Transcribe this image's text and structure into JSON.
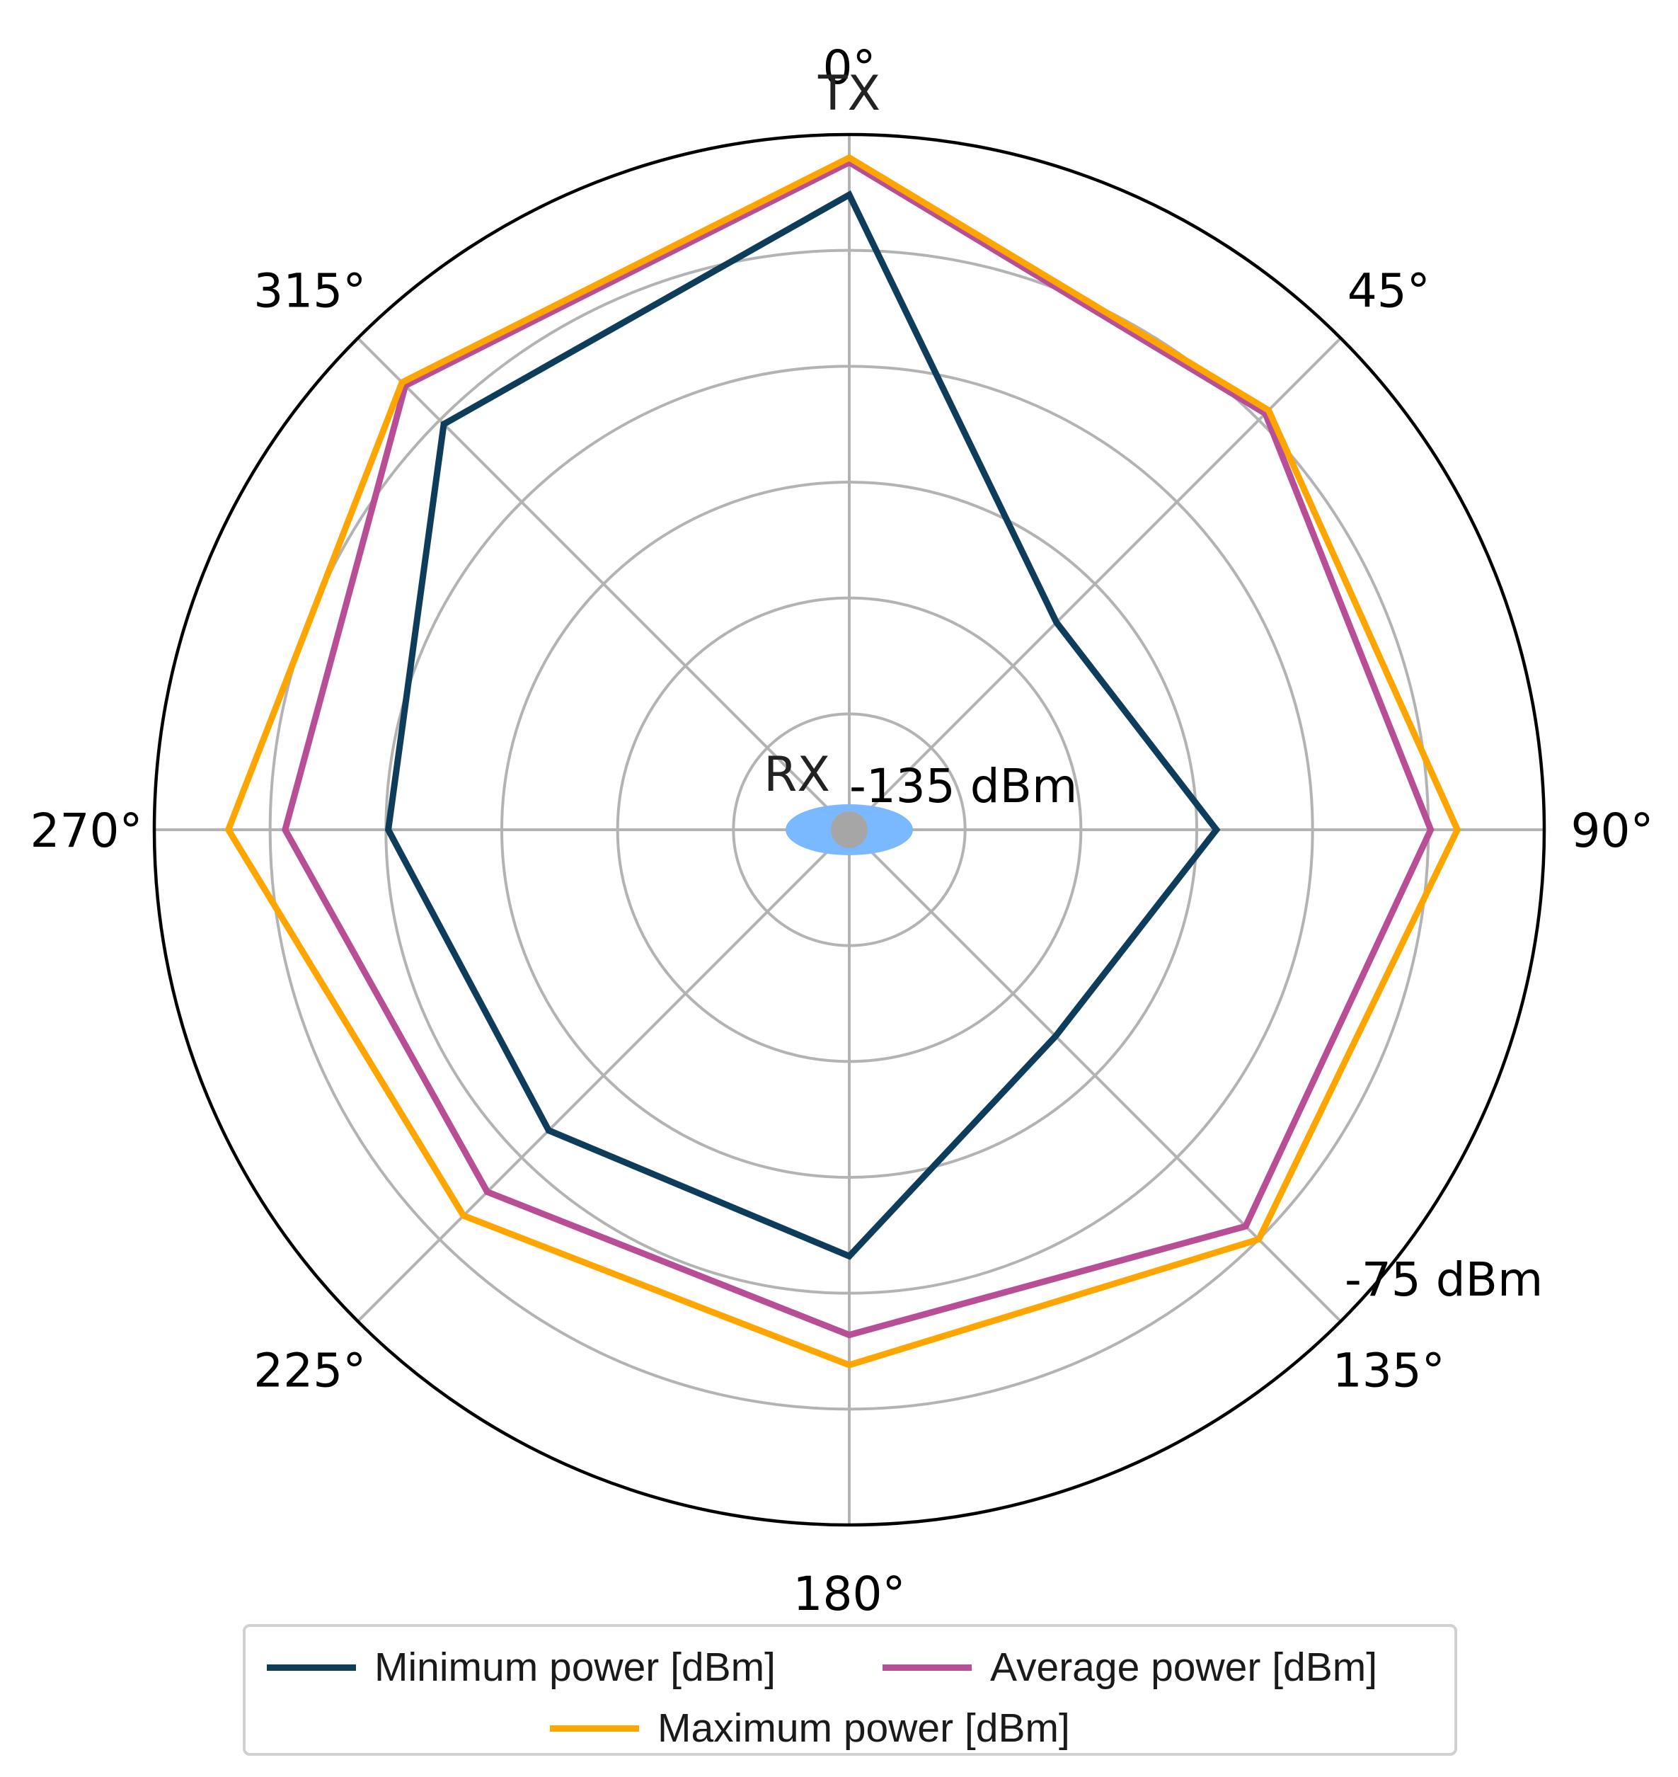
{
  "chart_data": {
    "type": "line",
    "projection": "polar",
    "angle_tick_labels": [
      "0°",
      "45°",
      "90°",
      "135°",
      "180°",
      "225°",
      "270°",
      "315°"
    ],
    "angles_deg": [
      0,
      45,
      90,
      135,
      180,
      225,
      270,
      315
    ],
    "radial_range_dbm": [
      -135,
      -75
    ],
    "radial_labels": {
      "inner": "-135 dBm",
      "outer": "-75 dBm"
    },
    "markers": {
      "tx": "TX",
      "rx": "RX"
    },
    "grid": true,
    "series": [
      {
        "name": "Minimum power [dBm]",
        "color": "#0e3d5c",
        "values": [
          -80.2,
          -109.7,
          -103.3,
          -109.8,
          -98.2,
          -98.3,
          -95.2,
          -85.5
        ]
      },
      {
        "name": "Average power [dBm]",
        "color": "#b84f96",
        "values": [
          -77.4,
          -84.2,
          -84.8,
          -86.6,
          -91.4,
          -90.8,
          -86.3,
          -80.8
        ]
      },
      {
        "name": "Maximum power [dBm]",
        "color": "#ffa500",
        "values": [
          -77.0,
          -83.8,
          -82.5,
          -85.0,
          -88.8,
          -87.9,
          -81.4,
          -80.4
        ]
      }
    ],
    "legend_position": "bottom"
  }
}
